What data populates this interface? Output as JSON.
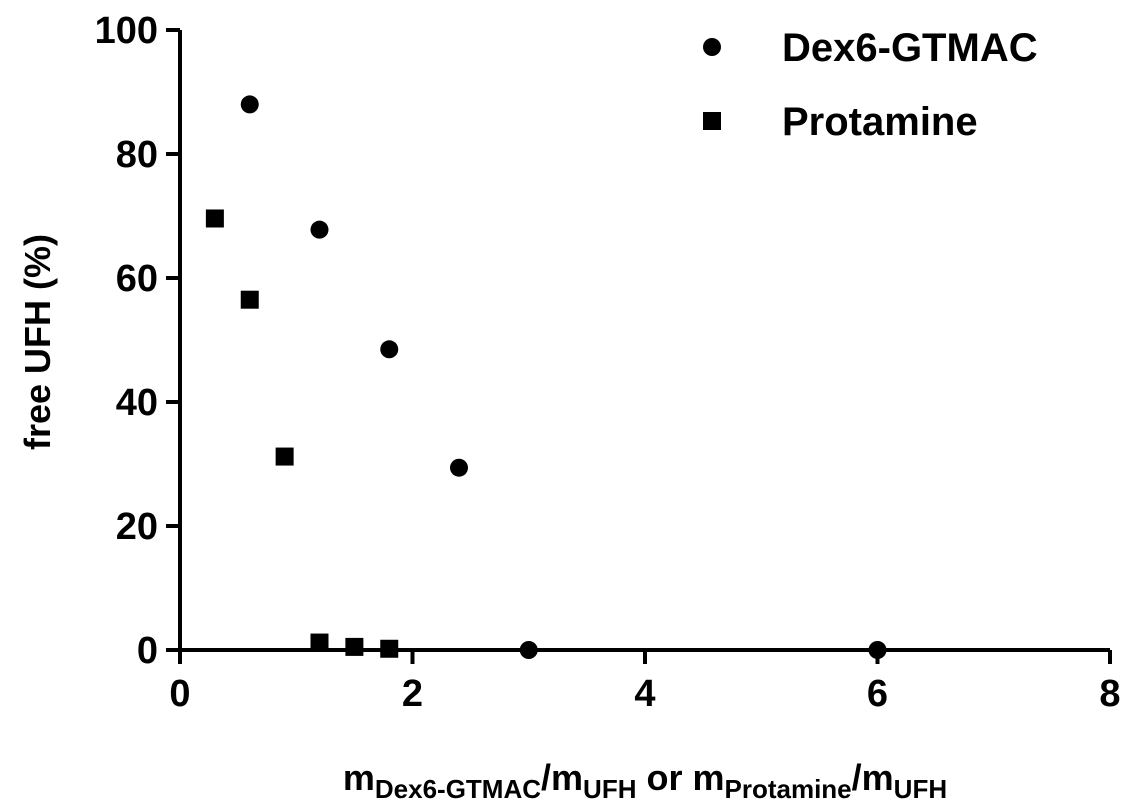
{
  "chart_data": {
    "type": "scatter",
    "title": "",
    "xlabel": {
      "parts": [
        {
          "text": "m",
          "sub": false
        },
        {
          "text": "Dex6-GTMAC",
          "sub": true
        },
        {
          "text": "/m",
          "sub": false
        },
        {
          "text": "UFH",
          "sub": true
        },
        {
          "text": " or m",
          "sub": false
        },
        {
          "text": "Protamine",
          "sub": true
        },
        {
          "text": "/m",
          "sub": false
        },
        {
          "text": "UFH",
          "sub": true
        }
      ]
    },
    "ylabel": "free UFH (%)",
    "xlim": [
      0,
      8
    ],
    "ylim": [
      0,
      100
    ],
    "xticks": [
      "0",
      "2",
      "4",
      "6",
      "8"
    ],
    "yticks": [
      "0",
      "20",
      "40",
      "60",
      "80",
      "100"
    ],
    "grid": false,
    "legend_position": "top-right",
    "series": [
      {
        "name": "Dex6-GTMAC",
        "marker": "circle",
        "color": "#000000",
        "points": [
          {
            "x": 0.6,
            "y": 88
          },
          {
            "x": 1.2,
            "y": 67.8
          },
          {
            "x": 1.8,
            "y": 48.5
          },
          {
            "x": 2.4,
            "y": 29.4
          },
          {
            "x": 3.0,
            "y": 0
          },
          {
            "x": 6.0,
            "y": 0
          }
        ]
      },
      {
        "name": "Protamine",
        "marker": "square",
        "color": "#000000",
        "points": [
          {
            "x": 0.3,
            "y": 69.6
          },
          {
            "x": 0.6,
            "y": 56.5
          },
          {
            "x": 0.9,
            "y": 31.2
          },
          {
            "x": 1.2,
            "y": 1.2
          },
          {
            "x": 1.5,
            "y": 0.5
          },
          {
            "x": 1.8,
            "y": 0.2
          }
        ]
      }
    ]
  }
}
